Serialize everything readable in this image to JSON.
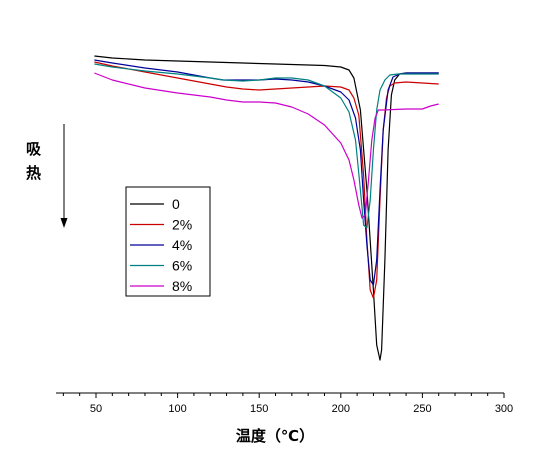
{
  "chart_data": {
    "type": "line",
    "xlabel": "温度（℃）",
    "ylabel_lines": [
      "吸",
      "热"
    ],
    "xlim": [
      30,
      300
    ],
    "xticks": [
      50,
      100,
      150,
      200,
      250,
      300
    ],
    "grid": false,
    "legend_position": "middle-left",
    "series": [
      {
        "name": "0",
        "color": "#000000",
        "points": [
          [
            49,
            56
          ],
          [
            60,
            58
          ],
          [
            80,
            60
          ],
          [
            100,
            61
          ],
          [
            120,
            62
          ],
          [
            140,
            63
          ],
          [
            160,
            64
          ],
          [
            180,
            65
          ],
          [
            190,
            65.5
          ],
          [
            200,
            67
          ],
          [
            205,
            70
          ],
          [
            208,
            78
          ],
          [
            212,
            110
          ],
          [
            216,
            190
          ],
          [
            220,
            290
          ],
          [
            222,
            345
          ],
          [
            224,
            360
          ],
          [
            225,
            350
          ],
          [
            227,
            260
          ],
          [
            229,
            150
          ],
          [
            231,
            95
          ],
          [
            233,
            80
          ],
          [
            236,
            74
          ],
          [
            240,
            73
          ],
          [
            250,
            73
          ],
          [
            260,
            73
          ]
        ]
      },
      {
        "name": "2%",
        "color": "#cc0000",
        "points": [
          [
            49,
            62
          ],
          [
            60,
            66
          ],
          [
            80,
            72
          ],
          [
            100,
            78
          ],
          [
            110,
            81
          ],
          [
            120,
            84
          ],
          [
            130,
            87
          ],
          [
            140,
            89
          ],
          [
            150,
            90
          ],
          [
            160,
            89
          ],
          [
            170,
            88
          ],
          [
            180,
            87
          ],
          [
            190,
            86
          ],
          [
            200,
            87
          ],
          [
            205,
            90
          ],
          [
            208,
            98
          ],
          [
            211,
            115
          ],
          [
            214,
            175
          ],
          [
            216,
            240
          ],
          [
            218,
            290
          ],
          [
            220,
            298
          ],
          [
            222,
            280
          ],
          [
            224,
            200
          ],
          [
            226,
            130
          ],
          [
            228,
            98
          ],
          [
            230,
            86
          ],
          [
            233,
            83
          ],
          [
            240,
            82
          ],
          [
            250,
            83
          ],
          [
            260,
            84
          ]
        ]
      },
      {
        "name": "4%",
        "color": "#000099",
        "points": [
          [
            49,
            60
          ],
          [
            60,
            63
          ],
          [
            80,
            68
          ],
          [
            100,
            72
          ],
          [
            110,
            75
          ],
          [
            120,
            78
          ],
          [
            128,
            80
          ],
          [
            140,
            80
          ],
          [
            150,
            80
          ],
          [
            160,
            79
          ],
          [
            170,
            80
          ],
          [
            180,
            82
          ],
          [
            190,
            86
          ],
          [
            200,
            92
          ],
          [
            205,
            100
          ],
          [
            209,
            118
          ],
          [
            212,
            150
          ],
          [
            214,
            200
          ],
          [
            216,
            245
          ],
          [
            218,
            280
          ],
          [
            220,
            285
          ],
          [
            222,
            260
          ],
          [
            224,
            190
          ],
          [
            226,
            130
          ],
          [
            229,
            90
          ],
          [
            232,
            77
          ],
          [
            236,
            74
          ],
          [
            240,
            73
          ],
          [
            250,
            73
          ],
          [
            260,
            73
          ]
        ]
      },
      {
        "name": "6%",
        "color": "#008080",
        "points": [
          [
            49,
            64
          ],
          [
            60,
            67
          ],
          [
            80,
            71
          ],
          [
            100,
            74
          ],
          [
            110,
            76
          ],
          [
            120,
            78
          ],
          [
            128,
            80
          ],
          [
            140,
            81
          ],
          [
            150,
            80
          ],
          [
            160,
            78
          ],
          [
            170,
            78
          ],
          [
            180,
            80
          ],
          [
            190,
            86
          ],
          [
            200,
            98
          ],
          [
            205,
            112
          ],
          [
            209,
            140
          ],
          [
            212,
            190
          ],
          [
            214,
            225
          ],
          [
            216,
            228
          ],
          [
            218,
            200
          ],
          [
            220,
            150
          ],
          [
            222,
            110
          ],
          [
            224,
            90
          ],
          [
            227,
            80
          ],
          [
            230,
            75
          ],
          [
            235,
            74
          ],
          [
            240,
            74
          ],
          [
            250,
            74
          ],
          [
            260,
            74
          ]
        ]
      },
      {
        "name": "8%",
        "color": "#cc00cc",
        "points": [
          [
            49,
            73
          ],
          [
            60,
            80
          ],
          [
            80,
            88
          ],
          [
            100,
            93
          ],
          [
            120,
            97
          ],
          [
            130,
            100
          ],
          [
            140,
            102
          ],
          [
            150,
            102
          ],
          [
            160,
            103
          ],
          [
            170,
            107
          ],
          [
            180,
            114
          ],
          [
            190,
            125
          ],
          [
            200,
            143
          ],
          [
            205,
            160
          ],
          [
            208,
            180
          ],
          [
            211,
            205
          ],
          [
            213,
            218
          ],
          [
            215,
            215
          ],
          [
            217,
            180
          ],
          [
            219,
            140
          ],
          [
            221,
            118
          ],
          [
            223,
            110
          ],
          [
            226,
            110
          ],
          [
            240,
            109
          ],
          [
            250,
            109
          ],
          [
            255,
            106
          ],
          [
            260,
            104
          ]
        ]
      }
    ]
  }
}
